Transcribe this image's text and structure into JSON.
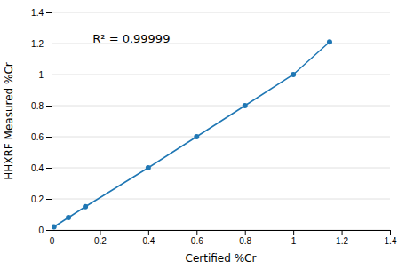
{
  "chart_data": {
    "type": "line",
    "x": [
      0.01,
      0.07,
      0.14,
      0.4,
      0.6,
      0.8,
      1.0,
      1.15
    ],
    "values": [
      0.02,
      0.08,
      0.15,
      0.4,
      0.6,
      0.8,
      1.0,
      1.21
    ],
    "x_label": "Certified %Cr",
    "y_label": "HHXRF Measured %Cr",
    "xlim": [
      0,
      1.4
    ],
    "ylim": [
      0,
      1.4
    ],
    "xticks": [
      0,
      0.2,
      0.4,
      0.6,
      0.8,
      1,
      1.2,
      1.4
    ],
    "yticks": [
      0,
      0.2,
      0.4,
      0.6,
      0.8,
      1,
      1.2,
      1.4
    ],
    "grid": "y",
    "marker": "circle",
    "annotations": [
      {
        "text": "R² = 0.99999",
        "x": 0.17,
        "y": 1.26
      }
    ]
  }
}
